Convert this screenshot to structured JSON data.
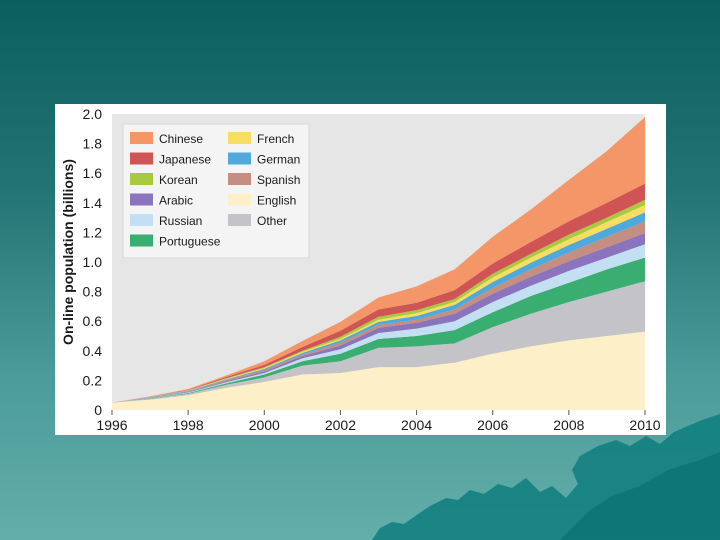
{
  "chart_data": {
    "type": "area",
    "stacked": true,
    "title": "",
    "xlabel": "",
    "ylabel": "On-line population (billions)",
    "xlim": [
      1996,
      2010
    ],
    "ylim": [
      0,
      2.0
    ],
    "x": [
      1996,
      1997,
      1998,
      1999,
      2000,
      2001,
      2002,
      2003,
      2004,
      2005,
      2006,
      2007,
      2008,
      2009,
      2010
    ],
    "x_ticks": [
      1996,
      1998,
      2000,
      2002,
      2004,
      2006,
      2008,
      2010
    ],
    "x_tick_labels": [
      "1996",
      "1998",
      "2000",
      "2002",
      "2004",
      "2006",
      "2008",
      "2010"
    ],
    "y_ticks": [
      0,
      0.2,
      0.4,
      0.6,
      0.8,
      1.0,
      1.2,
      1.4,
      1.6,
      1.8,
      2.0
    ],
    "y_tick_labels": [
      "0",
      "0.2",
      "0.4",
      "0.6",
      "0.8",
      "1.0",
      "1.2",
      "1.4",
      "1.6",
      "1.8",
      "2.0"
    ],
    "grid": false,
    "legend_position": "top-left",
    "series": [
      {
        "name": "English",
        "color": "#fdf0c8",
        "values": [
          0.05,
          0.07,
          0.1,
          0.15,
          0.19,
          0.24,
          0.25,
          0.29,
          0.29,
          0.32,
          0.38,
          0.43,
          0.47,
          0.5,
          0.53
        ]
      },
      {
        "name": "Other",
        "color": "#c4c3c8",
        "values": [
          0.0,
          0.005,
          0.01,
          0.02,
          0.03,
          0.06,
          0.08,
          0.13,
          0.14,
          0.13,
          0.18,
          0.22,
          0.26,
          0.3,
          0.34
        ]
      },
      {
        "name": "Portuguese",
        "color": "#3aad70",
        "values": [
          0.0,
          0.003,
          0.005,
          0.01,
          0.02,
          0.03,
          0.05,
          0.06,
          0.07,
          0.09,
          0.1,
          0.12,
          0.13,
          0.15,
          0.16
        ]
      },
      {
        "name": "Russian",
        "color": "#c3dff2",
        "values": [
          0.0,
          0.002,
          0.004,
          0.008,
          0.01,
          0.02,
          0.03,
          0.04,
          0.05,
          0.06,
          0.07,
          0.07,
          0.08,
          0.08,
          0.09
        ]
      },
      {
        "name": "Arabic",
        "color": "#8a74bd",
        "values": [
          0.0,
          0.002,
          0.003,
          0.006,
          0.01,
          0.015,
          0.025,
          0.035,
          0.04,
          0.05,
          0.055,
          0.06,
          0.065,
          0.07,
          0.075
        ]
      },
      {
        "name": "Spanish",
        "color": "#c48e80",
        "values": [
          0.0,
          0.002,
          0.004,
          0.008,
          0.01,
          0.01,
          0.02,
          0.02,
          0.02,
          0.03,
          0.04,
          0.05,
          0.06,
          0.07,
          0.08
        ]
      },
      {
        "name": "German",
        "color": "#4ea9dc",
        "values": [
          0.0,
          0.002,
          0.003,
          0.005,
          0.008,
          0.01,
          0.015,
          0.02,
          0.025,
          0.03,
          0.04,
          0.045,
          0.05,
          0.055,
          0.06
        ]
      },
      {
        "name": "French",
        "color": "#f7de62",
        "values": [
          0.0,
          0.001,
          0.002,
          0.004,
          0.006,
          0.008,
          0.01,
          0.015,
          0.02,
          0.02,
          0.03,
          0.035,
          0.04,
          0.045,
          0.05
        ]
      },
      {
        "name": "Korean",
        "color": "#a9c93e",
        "values": [
          0.0,
          0.001,
          0.002,
          0.004,
          0.006,
          0.008,
          0.015,
          0.02,
          0.02,
          0.02,
          0.025,
          0.025,
          0.03,
          0.03,
          0.035
        ]
      },
      {
        "name": "Japanese",
        "color": "#cf5454",
        "values": [
          0.0,
          0.002,
          0.004,
          0.008,
          0.015,
          0.025,
          0.04,
          0.05,
          0.05,
          0.06,
          0.07,
          0.08,
          0.09,
          0.1,
          0.11
        ]
      },
      {
        "name": "Chinese",
        "color": "#f59669",
        "values": [
          0.0,
          0.002,
          0.005,
          0.01,
          0.025,
          0.04,
          0.06,
          0.08,
          0.11,
          0.14,
          0.18,
          0.22,
          0.28,
          0.35,
          0.45
        ]
      }
    ],
    "legend_order": [
      "Chinese",
      "French",
      "Japanese",
      "German",
      "Korean",
      "Spanish",
      "Arabic",
      "English",
      "Russian",
      "Other",
      "Portuguese"
    ]
  }
}
